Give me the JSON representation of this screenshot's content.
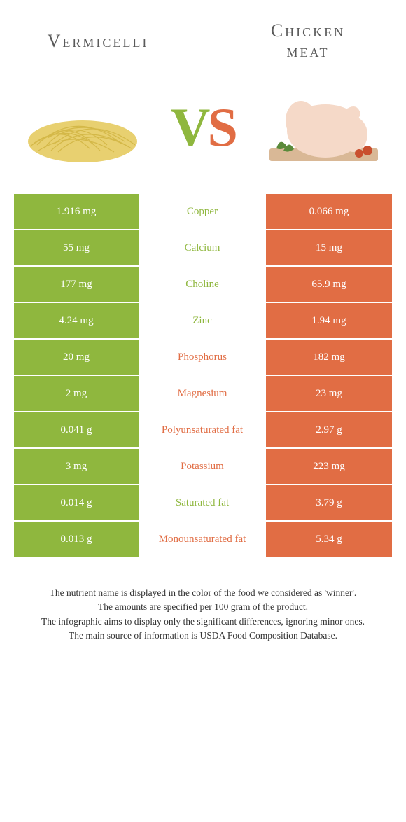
{
  "header": {
    "left_title": "Vermicelli",
    "right_title_line1": "Chicken",
    "right_title_line2": "meat",
    "vs_v": "V",
    "vs_s": "S"
  },
  "colors": {
    "green": "#8fb73e",
    "orange": "#e16d44",
    "background": "#ffffff",
    "text": "#333333"
  },
  "table": {
    "rows": [
      {
        "left": "1.916 mg",
        "name": "Copper",
        "right": "0.066 mg",
        "winner": "left"
      },
      {
        "left": "55 mg",
        "name": "Calcium",
        "right": "15 mg",
        "winner": "left"
      },
      {
        "left": "177 mg",
        "name": "Choline",
        "right": "65.9 mg",
        "winner": "left"
      },
      {
        "left": "4.24 mg",
        "name": "Zinc",
        "right": "1.94 mg",
        "winner": "left"
      },
      {
        "left": "20 mg",
        "name": "Phosphorus",
        "right": "182 mg",
        "winner": "right"
      },
      {
        "left": "2 mg",
        "name": "Magnesium",
        "right": "23 mg",
        "winner": "right"
      },
      {
        "left": "0.041 g",
        "name": "Polyunsaturated fat",
        "right": "2.97 g",
        "winner": "right"
      },
      {
        "left": "3 mg",
        "name": "Potassium",
        "right": "223 mg",
        "winner": "right"
      },
      {
        "left": "0.014 g",
        "name": "Saturated fat",
        "right": "3.79 g",
        "winner": "left"
      },
      {
        "left": "0.013 g",
        "name": "Monounsaturated fat",
        "right": "5.34 g",
        "winner": "right"
      }
    ]
  },
  "footer": {
    "line1": "The nutrient name is displayed in the color of the food we considered as 'winner'.",
    "line2": "The amounts are specified per 100 gram of the product.",
    "line3": "The infographic aims to display only the significant differences, ignoring minor ones.",
    "line4": "The main source of information is USDA Food Composition Database."
  }
}
